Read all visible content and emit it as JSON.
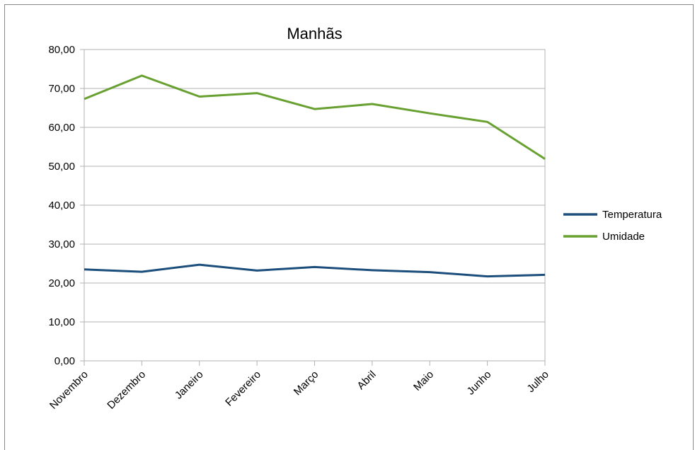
{
  "chart_data": {
    "type": "line",
    "title": "Manhãs",
    "xlabel": "",
    "ylabel": "",
    "categories": [
      "Novembro",
      "Dezembro",
      "Janeiro",
      "Fevereiro",
      "Março",
      "Abril",
      "Maio",
      "Junho",
      "Julho"
    ],
    "ylim": [
      0,
      80
    ],
    "yticks": [
      "0,00",
      "10,00",
      "20,00",
      "30,00",
      "40,00",
      "50,00",
      "60,00",
      "70,00",
      "80,00"
    ],
    "grid": true,
    "legend_position": "right",
    "series": [
      {
        "name": "Temperatura",
        "color": "#1c4e7b",
        "values": [
          23.5,
          22.9,
          24.7,
          23.2,
          24.1,
          23.3,
          22.8,
          21.7,
          22.1
        ]
      },
      {
        "name": "Umidade",
        "color": "#68a131",
        "values": [
          67.3,
          73.3,
          67.9,
          68.8,
          64.7,
          66.0,
          63.6,
          61.4,
          51.9
        ]
      }
    ]
  }
}
